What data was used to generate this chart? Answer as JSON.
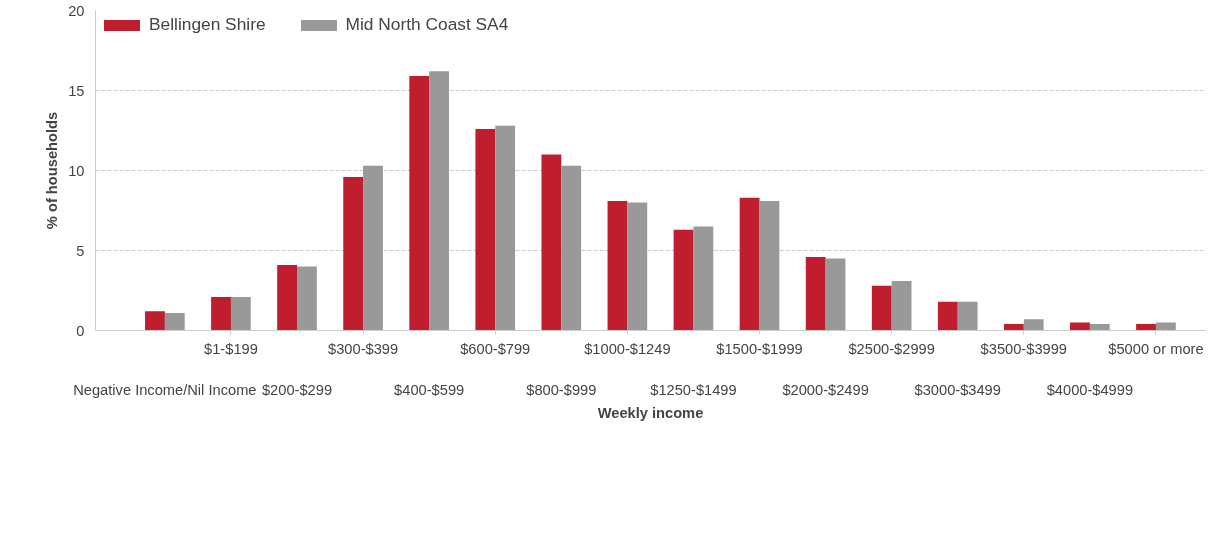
{
  "chart_data": {
    "type": "bar",
    "xlabel": "Weekly income",
    "ylabel": "% of households",
    "categories": [
      "Negative Income/Nil Income",
      "$1-$199",
      "$200-$299",
      "$300-$399",
      "$400-$599",
      "$600-$799",
      "$800-$999",
      "$1000-$1249",
      "$1250-$1499",
      "$1500-$1999",
      "$2000-$2499",
      "$2500-$2999",
      "$3000-$3499",
      "$3500-$3999",
      "$4000-$4999",
      "$5000 or more"
    ],
    "series": [
      {
        "name": "Bellingen Shire",
        "color": "#be1e2d",
        "values": [
          1.2,
          2.1,
          4.1,
          9.6,
          15.9,
          12.6,
          11.0,
          8.1,
          6.3,
          8.3,
          4.6,
          2.8,
          1.8,
          0.4,
          0.5,
          0.4
        ]
      },
      {
        "name": "Mid North Coast SA4",
        "color": "#999999",
        "values": [
          1.1,
          2.1,
          4.0,
          10.3,
          16.2,
          12.8,
          10.3,
          8.0,
          6.5,
          8.1,
          4.5,
          3.1,
          1.8,
          0.7,
          0.4,
          0.5
        ]
      }
    ],
    "ylim": [
      0,
      20
    ],
    "yticks": [
      0,
      5,
      10,
      15,
      20
    ],
    "grid": "y",
    "legend": "top left"
  }
}
